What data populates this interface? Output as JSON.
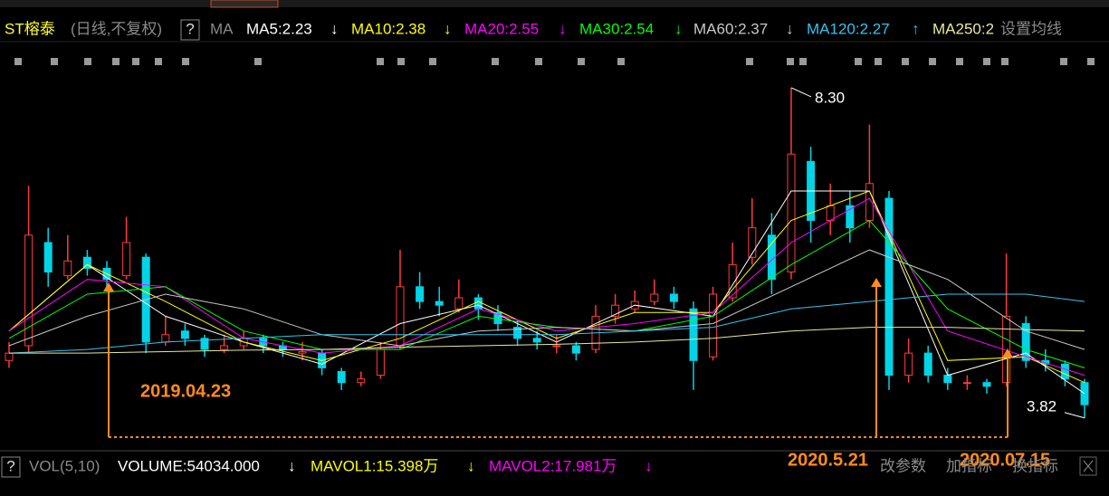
{
  "chart_data": {
    "type": "candlestick",
    "title": "ST榕泰",
    "subtitle": "(日线,不复权)",
    "help": "?",
    "ma_label": "MA",
    "settings": "设置均线",
    "ylim": [
      3.4,
      8.95
    ],
    "up_color": "#ff3a3a",
    "down_color": "#00d4e6",
    "candles": {
      "open": [
        4.6,
        4.8,
        6.2,
        5.75,
        6.0,
        5.85,
        5.75,
        6.0,
        4.85,
        5.0,
        4.9,
        4.75,
        4.8,
        4.9,
        4.8,
        4.7,
        4.7,
        4.45,
        4.3,
        4.4,
        4.8,
        5.6,
        5.4,
        5.3,
        5.45,
        5.25,
        5.05,
        4.9,
        4.8,
        4.8,
        4.75,
        5.2,
        5.3,
        5.4,
        5.5,
        5.3,
        4.65,
        5.45,
        6.0,
        6.3,
        5.8,
        7.3,
        6.5,
        6.7,
        6.5,
        6.8,
        4.4,
        4.7,
        4.4,
        4.3,
        4.3,
        4.3,
        5.1,
        4.6,
        4.55,
        4.3
      ],
      "high": [
        4.85,
        6.97,
        6.4,
        6.3,
        6.1,
        5.95,
        6.55,
        6.05,
        5.2,
        5.1,
        4.95,
        4.95,
        5.0,
        4.95,
        4.85,
        4.85,
        4.75,
        4.5,
        4.45,
        4.85,
        6.1,
        5.8,
        5.6,
        5.7,
        5.5,
        5.35,
        5.15,
        5.0,
        4.95,
        4.85,
        5.35,
        5.5,
        5.55,
        5.7,
        5.6,
        5.4,
        5.6,
        6.2,
        6.8,
        6.6,
        8.3,
        7.5,
        7.0,
        6.9,
        7.8,
        6.9,
        4.9,
        4.8,
        4.5,
        4.4,
        4.35,
        6.05,
        5.2,
        4.75,
        4.6,
        4.35
      ],
      "low": [
        4.5,
        4.7,
        5.6,
        5.7,
        5.75,
        5.55,
        5.7,
        4.7,
        4.8,
        4.8,
        4.65,
        4.7,
        4.75,
        4.7,
        4.65,
        4.6,
        4.4,
        4.2,
        4.25,
        4.35,
        4.75,
        5.3,
        5.2,
        5.25,
        5.15,
        5.0,
        4.8,
        4.75,
        4.7,
        4.6,
        4.7,
        5.1,
        5.25,
        5.35,
        5.3,
        4.2,
        4.6,
        5.4,
        5.9,
        5.5,
        5.7,
        6.2,
        6.3,
        6.2,
        6.4,
        4.2,
        4.3,
        4.3,
        4.2,
        4.2,
        4.15,
        4.25,
        4.5,
        4.45,
        4.25,
        3.82
      ],
      "close": [
        4.7,
        6.3,
        5.8,
        5.95,
        5.85,
        5.7,
        6.2,
        4.85,
        4.95,
        4.9,
        4.75,
        4.8,
        4.9,
        4.8,
        4.75,
        4.72,
        4.5,
        4.3,
        4.35,
        4.75,
        5.6,
        5.4,
        5.35,
        5.45,
        5.3,
        5.1,
        4.9,
        4.85,
        4.8,
        4.7,
        5.2,
        5.35,
        5.4,
        5.5,
        5.4,
        4.6,
        5.5,
        5.9,
        6.4,
        5.7,
        7.4,
        6.5,
        6.7,
        6.4,
        7.0,
        4.4,
        4.7,
        4.4,
        4.3,
        4.3,
        4.25,
        5.2,
        4.6,
        4.55,
        4.35,
        4.0
      ]
    },
    "ma_index": [
      0,
      4,
      8,
      12,
      16,
      20,
      24,
      28,
      32,
      36,
      40,
      44,
      48,
      52,
      55
    ],
    "series": [
      {
        "name": "MA5:2.23",
        "trend": "↓",
        "color": "#ffffff",
        "values": [
          5.0,
          5.9,
          5.2,
          4.85,
          4.55,
          5.1,
          5.35,
          4.85,
          5.35,
          5.2,
          6.9,
          6.9,
          4.4,
          4.7,
          4.15
        ]
      },
      {
        "name": "MA10:2.38",
        "trend": "↓",
        "color": "#ffff00",
        "values": [
          5.0,
          5.9,
          5.4,
          4.85,
          4.6,
          4.9,
          5.4,
          4.9,
          5.25,
          5.25,
          6.5,
          6.9,
          4.6,
          4.65,
          4.3
        ]
      },
      {
        "name": "MA20:2.55",
        "trend": "↓",
        "color": "#ff00ff",
        "values": [
          5.0,
          5.7,
          5.6,
          4.9,
          4.7,
          4.8,
          5.3,
          5.0,
          5.1,
          5.25,
          6.2,
          6.8,
          5.0,
          4.65,
          4.4
        ]
      },
      {
        "name": "MA30:2.54",
        "trend": "↓",
        "color": "#00ff00",
        "values": [
          4.9,
          5.5,
          5.6,
          5.0,
          4.75,
          4.75,
          5.2,
          5.05,
          5.0,
          5.2,
          5.9,
          6.5,
          5.3,
          4.75,
          4.5
        ]
      },
      {
        "name": "MA60:2.37",
        "trend": "↓",
        "color": "#c8c8c8",
        "values": [
          4.8,
          5.2,
          5.5,
          5.3,
          4.95,
          4.8,
          5.0,
          5.05,
          5.0,
          5.1,
          5.6,
          6.1,
          5.7,
          5.0,
          4.75
        ]
      },
      {
        "name": "MA120:2.27",
        "trend": "↑",
        "color": "#33c4f0",
        "values": [
          4.7,
          4.75,
          4.85,
          4.9,
          4.95,
          4.95,
          4.95,
          4.95,
          5.0,
          5.05,
          5.3,
          5.4,
          5.5,
          5.5,
          5.4
        ]
      },
      {
        "name": "MA250:2",
        "color": "#e8e8a0",
        "values": [
          4.7,
          4.7,
          4.72,
          4.74,
          4.75,
          4.78,
          4.8,
          4.82,
          4.85,
          4.9,
          5.0,
          5.05,
          5.05,
          5.02,
          5.0
        ]
      }
    ],
    "max_mark": {
      "value": 8.3,
      "label": "8.30"
    },
    "min_mark": {
      "value": 3.82,
      "label": "3.82"
    },
    "annotations": [
      "2019.04.23",
      "2020.5.21",
      "2020.07.15"
    ],
    "volume_panel": {
      "help": "?",
      "label": "VOL(5,10)",
      "items": [
        {
          "name": "VOLUME:54034.000",
          "trend": "↓",
          "color": "#ffffff"
        },
        {
          "name": "MAVOL1:15.398万",
          "trend": "↓",
          "color": "#ffff00"
        },
        {
          "name": "MAVOL2:17.981万",
          "trend": "↓",
          "color": "#ff00ff"
        }
      ],
      "buttons": [
        "改参数",
        "加指标",
        "换指标"
      ]
    }
  }
}
